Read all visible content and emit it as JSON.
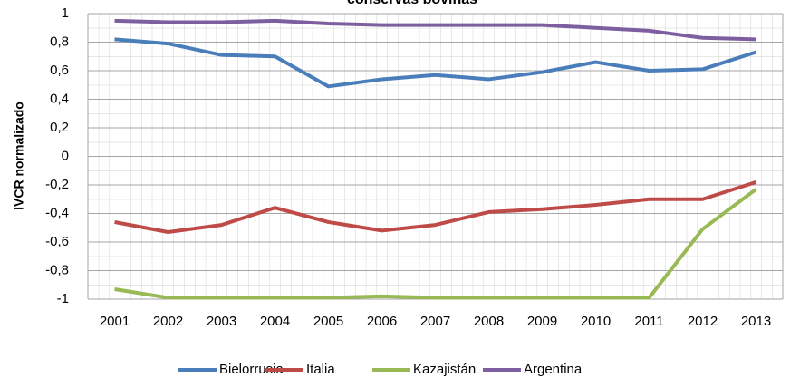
{
  "chart_data": {
    "type": "line",
    "title": "conservas bovinas",
    "y_label": "IVCR normalizado",
    "categories": [
      "2001",
      "2002",
      "2003",
      "2004",
      "2005",
      "2006",
      "2007",
      "2008",
      "2009",
      "2010",
      "2011",
      "2012",
      "2013"
    ],
    "series": [
      {
        "name": "Bielorrusia",
        "color": "#4a7ebb",
        "values": [
          0.82,
          0.79,
          0.71,
          0.7,
          0.49,
          0.54,
          0.57,
          0.54,
          0.59,
          0.66,
          0.6,
          0.61,
          0.73
        ]
      },
      {
        "name": "Italia",
        "color": "#be4b48",
        "values": [
          -0.46,
          -0.53,
          -0.48,
          -0.36,
          -0.46,
          -0.52,
          -0.48,
          -0.39,
          -0.37,
          -0.34,
          -0.3,
          -0.3,
          -0.18
        ]
      },
      {
        "name": "Kazajistán",
        "color": "#98b954",
        "values": [
          -0.93,
          -0.99,
          -0.99,
          -0.99,
          -0.99,
          -0.98,
          -0.99,
          -0.99,
          -0.99,
          -0.99,
          -0.99,
          -0.51,
          -0.23
        ]
      },
      {
        "name": "Argentina",
        "color": "#7d5fa0",
        "values": [
          0.95,
          0.94,
          0.94,
          0.95,
          0.93,
          0.92,
          0.92,
          0.92,
          0.92,
          0.9,
          0.88,
          0.83,
          0.82
        ]
      }
    ],
    "ylim": [
      -1,
      1
    ],
    "yticks": [
      -1,
      {
        "value": -0.8,
        "label": "-0,8"
      },
      {
        "value": -0.6,
        "label": "-0,6"
      },
      {
        "value": -0.4,
        "label": "-0,4"
      },
      {
        "value": -0.2,
        "label": "-0,2"
      },
      0,
      {
        "value": 0.2,
        "label": "0,2"
      },
      {
        "value": 0.4,
        "label": "0,4"
      },
      {
        "value": 0.6,
        "label": "0,6"
      },
      {
        "value": 0.8,
        "label": "0,8"
      },
      1
    ],
    "grid": true,
    "legend": "bottom"
  }
}
